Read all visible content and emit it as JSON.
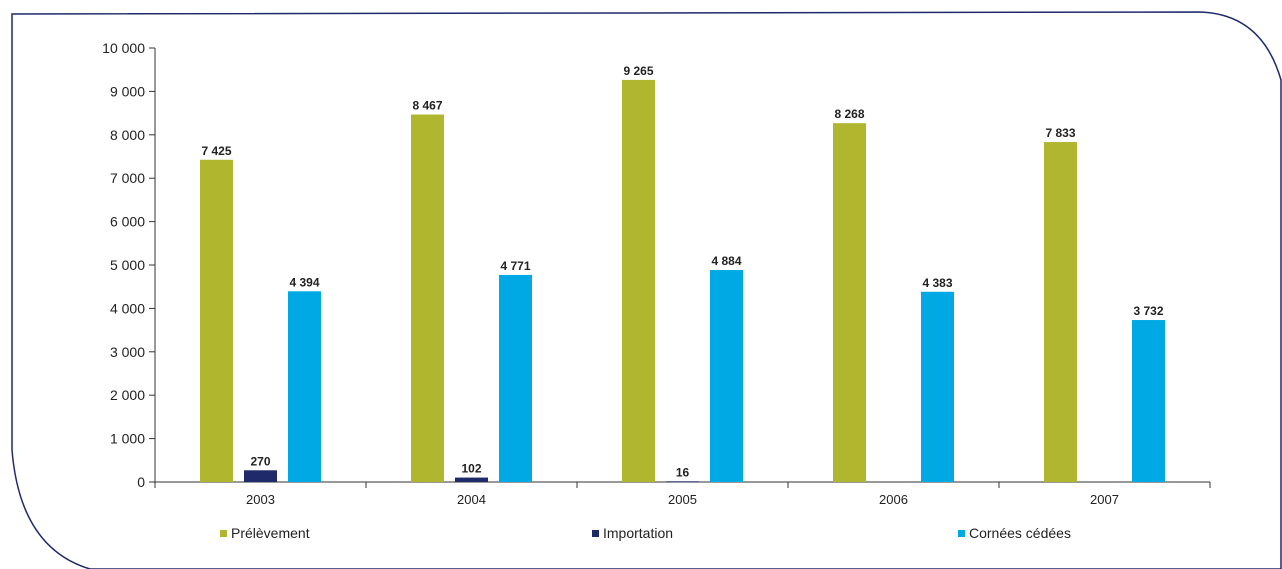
{
  "chart_data": {
    "type": "bar",
    "categories": [
      "2003",
      "2004",
      "2005",
      "2006",
      "2007"
    ],
    "series": [
      {
        "name": "Prélèvement",
        "color": "#b0b72e",
        "values": [
          7425,
          8467,
          9265,
          8268,
          7833
        ],
        "labels": [
          "7 425",
          "8 467",
          "9 265",
          "8 268",
          "7 833"
        ]
      },
      {
        "name": "Importation",
        "color": "#1f2a6b",
        "values": [
          270,
          102,
          16,
          0,
          0
        ],
        "labels": [
          "270",
          "102",
          "16",
          "",
          ""
        ]
      },
      {
        "name": "Cornées cédées",
        "color": "#00a9e4",
        "values": [
          4394,
          4771,
          4884,
          4383,
          3732
        ],
        "labels": [
          "4 394",
          "4 771",
          "4 884",
          "4 383",
          "3 732"
        ]
      }
    ],
    "ylim": [
      0,
      10000
    ],
    "yticks": [
      0,
      1000,
      2000,
      3000,
      4000,
      5000,
      6000,
      7000,
      8000,
      9000,
      10000
    ],
    "ytick_labels": [
      "0",
      "1 000",
      "2 000",
      "3 000",
      "4 000",
      "5 000",
      "6 000",
      "7 000",
      "8 000",
      "9 000",
      "10 000"
    ],
    "title": "",
    "xlabel": "",
    "ylabel": "",
    "grid": false,
    "legend_position": "bottom",
    "frame_color": "#1f2a6b"
  }
}
